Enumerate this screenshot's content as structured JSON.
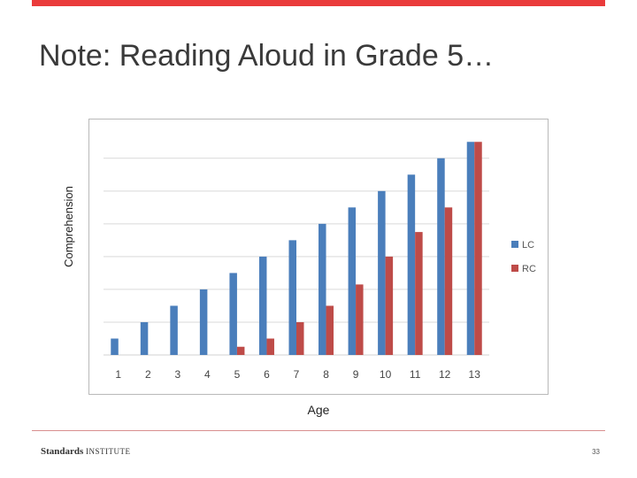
{
  "slide": {
    "title": "Note: Reading Aloud in Grade 5…",
    "page_number": "33",
    "logo_bold": "Standards",
    "logo_light": "INSTITUTE"
  },
  "colors": {
    "accent": "#ea3b3b",
    "lc": "#4a7ebb",
    "rc": "#be4b48",
    "grid": "#d9d9d9"
  },
  "chart_data": {
    "type": "bar",
    "xlabel": "Age",
    "ylabel": "Comprehension",
    "categories": [
      "1",
      "2",
      "3",
      "4",
      "5",
      "6",
      "7",
      "8",
      "9",
      "10",
      "11",
      "12",
      "13"
    ],
    "series": [
      {
        "name": "LC",
        "values": [
          1,
          2,
          3,
          4,
          5,
          6,
          7,
          8,
          9,
          10,
          11,
          12,
          13
        ]
      },
      {
        "name": "RC",
        "values": [
          null,
          null,
          null,
          null,
          0.5,
          1,
          2,
          3,
          4.3,
          6,
          7.5,
          9,
          13
        ]
      }
    ],
    "ylim": [
      0,
      13.5
    ],
    "grid": true,
    "legend": "right"
  }
}
